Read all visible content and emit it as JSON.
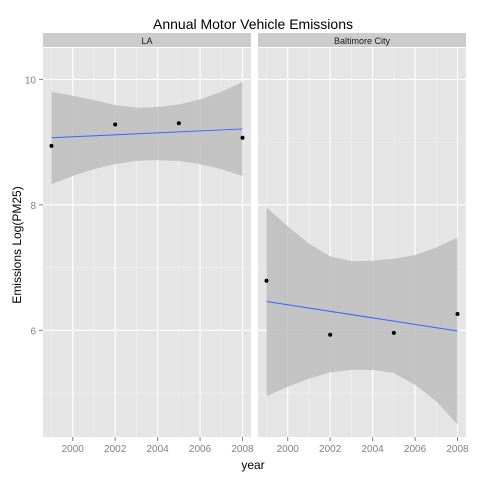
{
  "chart_data": {
    "type": "scatter",
    "title": "Annual Motor Vehicle Emissions",
    "xlabel": "year",
    "ylabel": "Emissions Log(PM25)",
    "xlim": [
      1998.6,
      2008.4
    ],
    "ylim": [
      4.3,
      10.5
    ],
    "x_ticks": [
      2000,
      2002,
      2004,
      2006,
      2008
    ],
    "y_ticks": [
      6,
      8,
      10
    ],
    "grid": true,
    "colors": {
      "panel_bg": "#e5e5e5",
      "strip_bg": "#cccccc",
      "grid_major": "#ffffff",
      "grid_minor": "#f2f2f2",
      "ribbon": "#bdbdbd",
      "trend_line": "#3366ff",
      "points": "#000000"
    },
    "facets": [
      {
        "label": "LA",
        "points": [
          {
            "x": 1999,
            "y": 8.94
          },
          {
            "x": 2002,
            "y": 9.28
          },
          {
            "x": 2005,
            "y": 9.3
          },
          {
            "x": 2008,
            "y": 9.07
          }
        ],
        "fit": {
          "x": [
            1999,
            2008
          ],
          "y": [
            9.07,
            9.21
          ]
        },
        "ribbon": {
          "x": [
            1999,
            2000,
            2001,
            2002,
            2003,
            2003.5,
            2004,
            2005,
            2006,
            2007,
            2008
          ],
          "lower": [
            8.33,
            8.46,
            8.57,
            8.65,
            8.7,
            8.71,
            8.71,
            8.7,
            8.65,
            8.57,
            8.46
          ],
          "upper": [
            9.8,
            9.74,
            9.67,
            9.59,
            9.55,
            9.55,
            9.56,
            9.6,
            9.68,
            9.8,
            9.96
          ]
        }
      },
      {
        "label": "Baltimore City",
        "points": [
          {
            "x": 1999,
            "y": 6.79
          },
          {
            "x": 2002,
            "y": 5.93
          },
          {
            "x": 2005,
            "y": 5.96
          },
          {
            "x": 2008,
            "y": 6.26
          }
        ],
        "fit": {
          "x": [
            1999,
            2008
          ],
          "y": [
            6.46,
            5.99
          ]
        },
        "ribbon": {
          "x": [
            1999,
            2000,
            2001,
            2002,
            2003,
            2004,
            2005,
            2006,
            2007,
            2008
          ],
          "lower": [
            4.95,
            5.1,
            5.23,
            5.33,
            5.37,
            5.37,
            5.32,
            5.13,
            4.87,
            4.5
          ],
          "upper": [
            7.96,
            7.66,
            7.38,
            7.18,
            7.1,
            7.11,
            7.14,
            7.2,
            7.32,
            7.48
          ]
        }
      }
    ]
  }
}
